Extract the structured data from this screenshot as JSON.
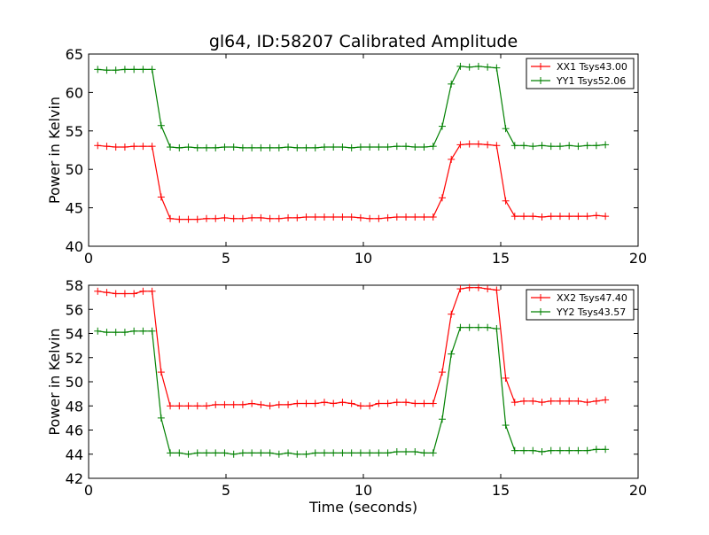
{
  "figure_title": "gl64, ID:58207 Calibrated Amplitude",
  "chart_data": [
    {
      "type": "line",
      "title": "gl64, ID:58207 Calibrated Amplitude",
      "xlabel": "",
      "ylabel": "Power in Kelvin",
      "xlim": [
        0,
        20
      ],
      "ylim": [
        40,
        65
      ],
      "xticks": [
        0,
        5,
        10,
        15,
        20
      ],
      "yticks": [
        40,
        45,
        50,
        55,
        60,
        65
      ],
      "grid": false,
      "legend": "top-right",
      "x": [
        0.33,
        0.66,
        0.99,
        1.32,
        1.65,
        1.98,
        2.31,
        2.64,
        2.97,
        3.3,
        3.63,
        3.96,
        4.29,
        4.62,
        4.95,
        5.28,
        5.61,
        5.94,
        6.27,
        6.6,
        6.93,
        7.26,
        7.59,
        7.92,
        8.25,
        8.58,
        8.91,
        9.24,
        9.57,
        9.9,
        10.23,
        10.56,
        10.89,
        11.22,
        11.55,
        11.88,
        12.21,
        12.54,
        12.87,
        13.2,
        13.53,
        13.86,
        14.19,
        14.52,
        14.85,
        15.18,
        15.51,
        15.84,
        16.17,
        16.5,
        16.83,
        17.16,
        17.49,
        17.82,
        18.15,
        18.48,
        18.81
      ],
      "series": [
        {
          "name": "XX1 Tsys43.00",
          "color": "#ff0000",
          "values": [
            53.1,
            53.0,
            52.9,
            52.9,
            53.0,
            53.0,
            53.0,
            46.4,
            43.6,
            43.5,
            43.5,
            43.5,
            43.6,
            43.6,
            43.7,
            43.6,
            43.6,
            43.7,
            43.7,
            43.6,
            43.6,
            43.7,
            43.7,
            43.8,
            43.8,
            43.8,
            43.8,
            43.8,
            43.8,
            43.7,
            43.6,
            43.6,
            43.7,
            43.8,
            43.8,
            43.8,
            43.8,
            43.8,
            46.3,
            51.3,
            53.2,
            53.3,
            53.3,
            53.2,
            53.1,
            45.9,
            43.9,
            43.9,
            43.9,
            43.8,
            43.9,
            43.9,
            43.9,
            43.9,
            43.9,
            44.0,
            43.9
          ]
        },
        {
          "name": "YY1 Tsys52.06",
          "color": "#008000",
          "values": [
            63.0,
            62.9,
            62.9,
            63.0,
            63.0,
            63.0,
            63.0,
            55.7,
            52.9,
            52.8,
            52.9,
            52.8,
            52.8,
            52.8,
            52.9,
            52.9,
            52.8,
            52.8,
            52.8,
            52.8,
            52.8,
            52.9,
            52.8,
            52.8,
            52.8,
            52.9,
            52.9,
            52.9,
            52.8,
            52.9,
            52.9,
            52.9,
            52.9,
            53.0,
            53.0,
            52.9,
            52.9,
            53.0,
            55.6,
            61.1,
            63.4,
            63.3,
            63.4,
            63.3,
            63.2,
            55.3,
            53.1,
            53.1,
            53.0,
            53.1,
            53.0,
            53.0,
            53.1,
            53.0,
            53.1,
            53.1,
            53.2
          ]
        }
      ]
    },
    {
      "type": "line",
      "title": "",
      "xlabel": "Time (seconds)",
      "ylabel": "Power in Kelvin",
      "xlim": [
        0,
        20
      ],
      "ylim": [
        42,
        58
      ],
      "xticks": [
        0,
        5,
        10,
        15,
        20
      ],
      "yticks": [
        42,
        44,
        46,
        48,
        50,
        52,
        54,
        56,
        58
      ],
      "grid": false,
      "legend": "top-right",
      "x": [
        0.33,
        0.66,
        0.99,
        1.32,
        1.65,
        1.98,
        2.31,
        2.64,
        2.97,
        3.3,
        3.63,
        3.96,
        4.29,
        4.62,
        4.95,
        5.28,
        5.61,
        5.94,
        6.27,
        6.6,
        6.93,
        7.26,
        7.59,
        7.92,
        8.25,
        8.58,
        8.91,
        9.24,
        9.57,
        9.9,
        10.23,
        10.56,
        10.89,
        11.22,
        11.55,
        11.88,
        12.21,
        12.54,
        12.87,
        13.2,
        13.53,
        13.86,
        14.19,
        14.52,
        14.85,
        15.18,
        15.51,
        15.84,
        16.17,
        16.5,
        16.83,
        17.16,
        17.49,
        17.82,
        18.15,
        18.48,
        18.81
      ],
      "series": [
        {
          "name": "XX2 Tsys47.40",
          "color": "#ff0000",
          "values": [
            57.5,
            57.4,
            57.3,
            57.3,
            57.3,
            57.5,
            57.5,
            50.8,
            48.0,
            48.0,
            48.0,
            48.0,
            48.0,
            48.1,
            48.1,
            48.1,
            48.1,
            48.2,
            48.1,
            48.0,
            48.1,
            48.1,
            48.2,
            48.2,
            48.2,
            48.3,
            48.2,
            48.3,
            48.2,
            48.0,
            48.0,
            48.2,
            48.2,
            48.3,
            48.3,
            48.2,
            48.2,
            48.2,
            50.8,
            55.6,
            57.7,
            57.8,
            57.8,
            57.7,
            57.6,
            50.3,
            48.3,
            48.4,
            48.4,
            48.3,
            48.4,
            48.4,
            48.4,
            48.4,
            48.3,
            48.4,
            48.5
          ]
        },
        {
          "name": "YY2 Tsys43.57",
          "color": "#008000",
          "values": [
            54.2,
            54.1,
            54.1,
            54.1,
            54.2,
            54.2,
            54.2,
            47.0,
            44.1,
            44.1,
            44.0,
            44.1,
            44.1,
            44.1,
            44.1,
            44.0,
            44.1,
            44.1,
            44.1,
            44.1,
            44.0,
            44.1,
            44.0,
            44.0,
            44.1,
            44.1,
            44.1,
            44.1,
            44.1,
            44.1,
            44.1,
            44.1,
            44.1,
            44.2,
            44.2,
            44.2,
            44.1,
            44.1,
            46.9,
            52.3,
            54.5,
            54.5,
            54.5,
            54.5,
            54.4,
            46.4,
            44.3,
            44.3,
            44.3,
            44.2,
            44.3,
            44.3,
            44.3,
            44.3,
            44.3,
            44.4,
            44.4
          ]
        }
      ]
    }
  ]
}
